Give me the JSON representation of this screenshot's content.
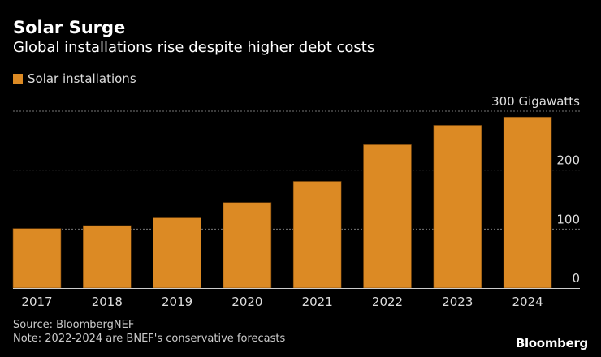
{
  "title": "Solar Surge",
  "subtitle": "Global installations rise despite higher debt costs",
  "source": "Source: BloombergNEF",
  "note": "Note: 2022-2024 are BNEF's conservative forecasts",
  "logo": "Bloomberg",
  "chart_data": {
    "type": "bar",
    "title": "Solar Surge",
    "subtitle": "Global installations rise despite higher debt costs",
    "categories": [
      "2017",
      "2018",
      "2019",
      "2020",
      "2021",
      "2022",
      "2023",
      "2024"
    ],
    "series": [
      {
        "name": "Solar installations",
        "color": "#dc8a24",
        "values": [
          101,
          106,
          119,
          145,
          181,
          243,
          276,
          290
        ]
      }
    ],
    "ylim": [
      0,
      300
    ],
    "yticks": [
      0,
      100,
      200,
      300
    ],
    "ytick_labels": [
      "0",
      "100",
      "200",
      "300 Gigawatts"
    ],
    "ylabel": "Gigawatts",
    "xlabel": "",
    "grid": true,
    "legend": "top-left"
  }
}
